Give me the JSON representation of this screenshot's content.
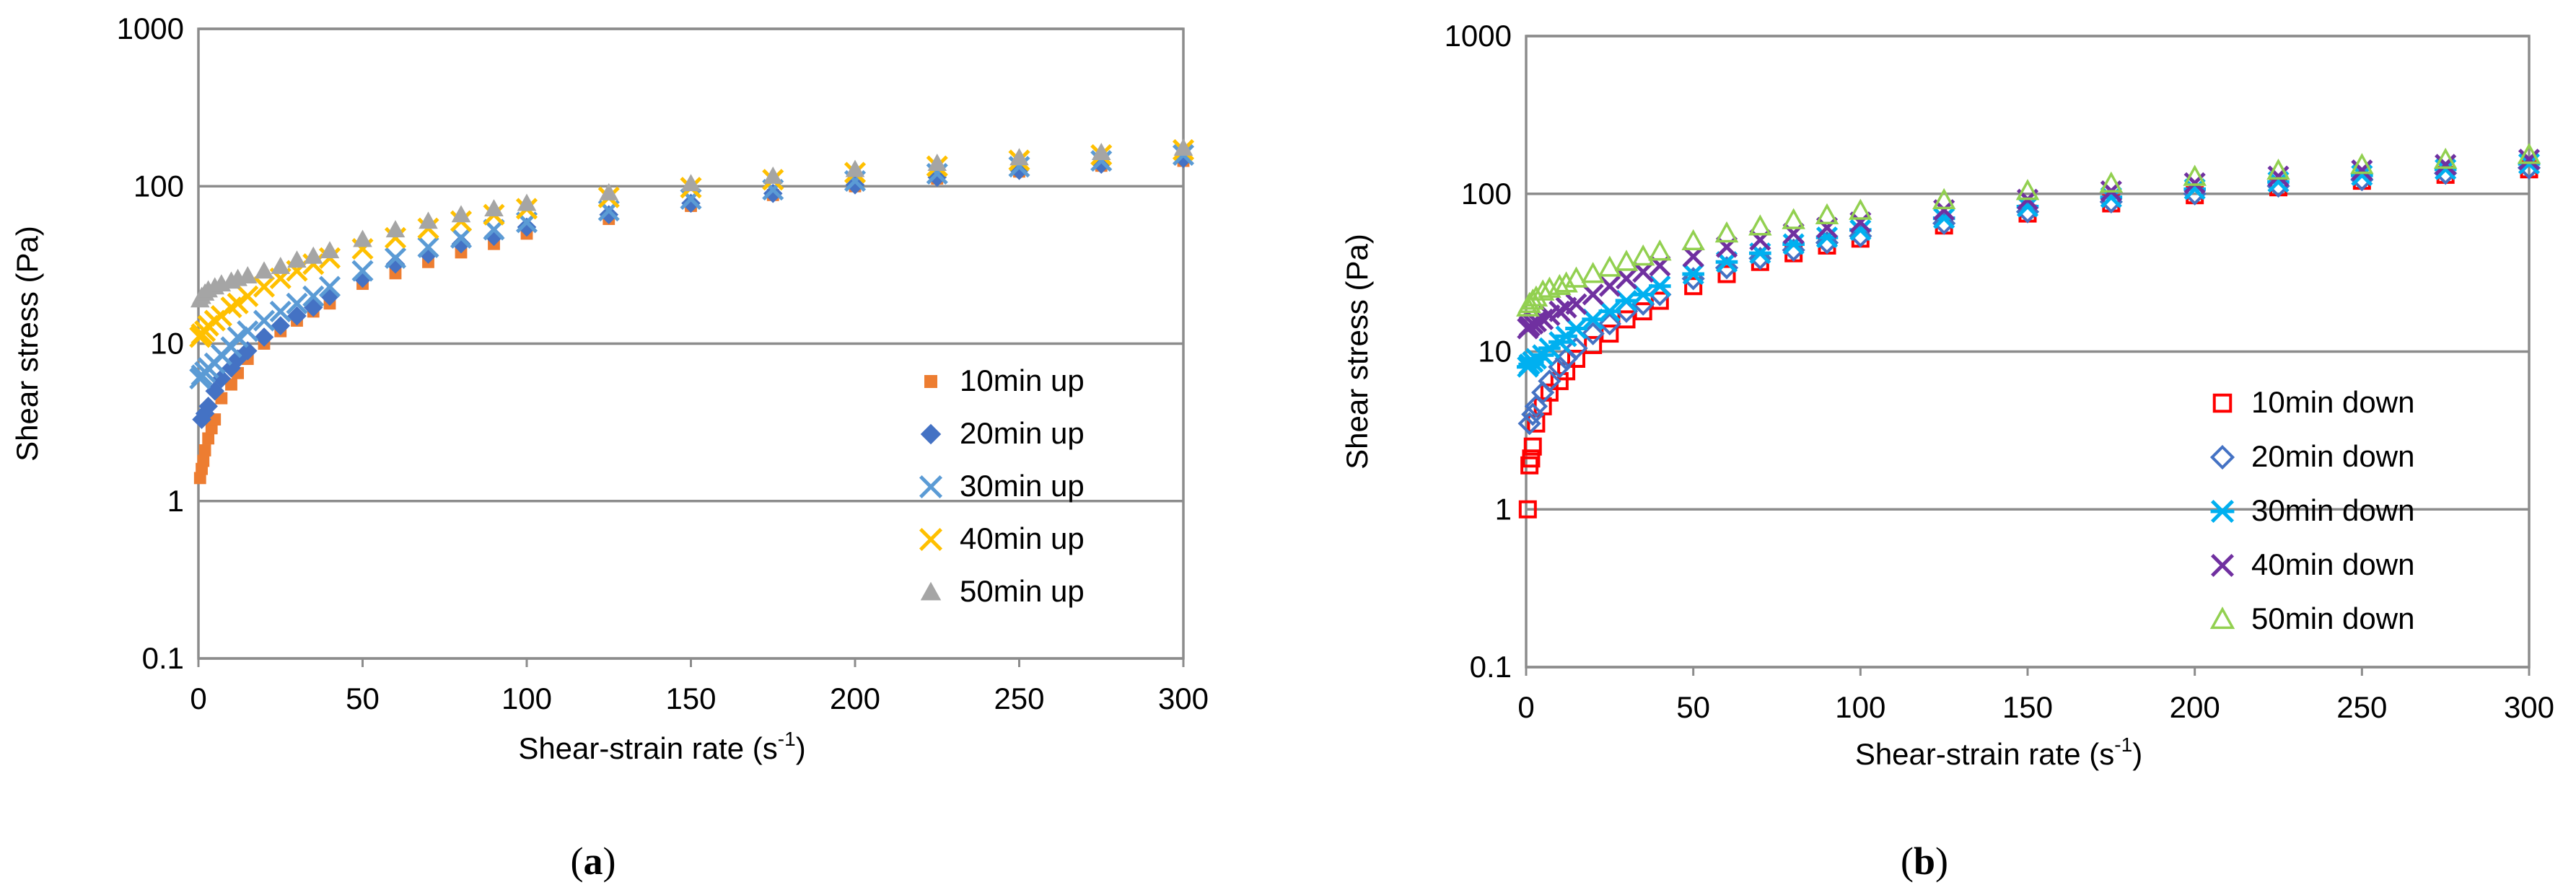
{
  "chart_data": [
    {
      "type": "scatter",
      "panel_label": "a",
      "xlabel": "Shear-strain rate (s",
      "xlabel_sup": "-1",
      "xlabel_close": ")",
      "ylabel": "Shear  stress (Pa)",
      "yscale": "log",
      "xlim": [
        0,
        300
      ],
      "ylim": [
        0.1,
        1000
      ],
      "xticks": [
        0,
        50,
        100,
        150,
        200,
        250,
        300
      ],
      "yticks": [
        0.1,
        1,
        10,
        100,
        1000
      ],
      "ytick_labels": [
        "0.1",
        "1",
        "10",
        "100",
        "1000"
      ],
      "grid": "horizontal",
      "legend_position": "bottom-right",
      "series": [
        {
          "name": "10min up",
          "marker": "square",
          "color": "#ED7D31",
          "x": [
            0.5,
            1,
            1.5,
            2,
            3,
            4,
            5,
            7,
            10,
            12,
            15,
            20,
            25,
            30,
            35,
            40,
            50,
            60,
            70,
            80,
            90,
            100,
            125,
            150,
            175,
            200,
            225,
            250,
            275,
            300
          ],
          "y": [
            1.4,
            1.6,
            1.8,
            2.1,
            2.5,
            2.9,
            3.3,
            4.5,
            5.5,
            6.5,
            8,
            10,
            12,
            14,
            16,
            18,
            24,
            28,
            33,
            38,
            43,
            50,
            62,
            75,
            88,
            100,
            112,
            124,
            135,
            145
          ]
        },
        {
          "name": "20min up",
          "marker": "diamond",
          "color": "#4472C4",
          "x": [
            1,
            2,
            3,
            5,
            7,
            10,
            12,
            15,
            20,
            25,
            30,
            35,
            40,
            50,
            60,
            70,
            80,
            90,
            100,
            125,
            150,
            175,
            200,
            225,
            250,
            275,
            300
          ],
          "y": [
            3.3,
            3.6,
            4,
            5,
            6,
            7,
            8,
            9,
            11,
            13,
            15,
            17,
            20,
            26,
            32,
            37,
            43,
            48,
            55,
            66,
            78,
            90,
            102,
            114,
            126,
            138,
            150
          ]
        },
        {
          "name": "30min up",
          "marker": "x",
          "color": "#5B9BD5",
          "x": [
            0.5,
            1,
            2,
            3,
            5,
            7,
            10,
            12,
            15,
            20,
            25,
            30,
            35,
            40,
            50,
            60,
            70,
            80,
            90,
            100,
            125,
            150,
            175,
            200,
            225,
            250,
            275,
            300
          ],
          "y": [
            6,
            6.3,
            6.6,
            7,
            7.5,
            8.5,
            9.5,
            11,
            12,
            14,
            16,
            18,
            20,
            23,
            29,
            35,
            41,
            47,
            53,
            59,
            70,
            83,
            95,
            108,
            120,
            133,
            145,
            158
          ]
        },
        {
          "name": "40min up",
          "marker": "x",
          "color": "#FFC000",
          "x": [
            0.5,
            1,
            2,
            3,
            5,
            7,
            10,
            12,
            15,
            20,
            25,
            30,
            35,
            40,
            50,
            60,
            70,
            80,
            90,
            100,
            125,
            150,
            175,
            200,
            225,
            250,
            275,
            300
          ],
          "y": [
            11,
            11.5,
            12,
            13,
            14,
            15,
            17,
            18,
            20,
            23,
            26,
            29,
            32,
            35,
            40,
            47,
            54,
            60,
            66,
            72,
            85,
            98,
            110,
            122,
            134,
            146,
            158,
            170
          ]
        },
        {
          "name": "50min up",
          "marker": "triangle",
          "color": "#A5A5A5",
          "x": [
            0.5,
            1,
            2,
            3,
            5,
            7,
            10,
            12,
            15,
            20,
            25,
            30,
            35,
            40,
            50,
            60,
            70,
            80,
            90,
            100,
            125,
            150,
            175,
            200,
            225,
            250,
            275,
            300
          ],
          "y": [
            19,
            20,
            21,
            22,
            23,
            24,
            25,
            26,
            27,
            29,
            31,
            34,
            36,
            39,
            46,
            53,
            60,
            66,
            72,
            78,
            91,
            104,
            116,
            128,
            140,
            152,
            164,
            175
          ]
        }
      ]
    },
    {
      "type": "scatter",
      "panel_label": "b",
      "xlabel": "Shear-strain rate (s",
      "xlabel_sup": "-1",
      "xlabel_close": ")",
      "ylabel": "Shear  stress (Pa)",
      "yscale": "log",
      "xlim": [
        0,
        300
      ],
      "ylim": [
        0.1,
        1000
      ],
      "xticks": [
        0,
        50,
        100,
        150,
        200,
        250,
        300
      ],
      "yticks": [
        0.1,
        1,
        10,
        100,
        1000
      ],
      "ytick_labels": [
        "0.1",
        "1",
        "10",
        "100",
        "1000"
      ],
      "grid": "horizontal",
      "legend_position": "bottom-right",
      "series": [
        {
          "name": "10min down",
          "marker": "square-open",
          "color": "#FF0000",
          "x": [
            0.5,
            1,
            1.5,
            2,
            3,
            5,
            7,
            10,
            12,
            15,
            20,
            25,
            30,
            35,
            40,
            50,
            60,
            70,
            80,
            90,
            100,
            125,
            150,
            175,
            200,
            225,
            250,
            275,
            300
          ],
          "y": [
            1,
            1.9,
            2.1,
            2.5,
            3.5,
            4.5,
            5.5,
            6.5,
            7.5,
            9,
            11,
            13,
            16,
            18,
            21,
            26,
            31,
            37,
            42,
            47,
            52,
            63,
            75,
            87,
            98,
            110,
            121,
            132,
            143
          ]
        },
        {
          "name": "20min down",
          "marker": "diamond-open",
          "color": "#4472C4",
          "x": [
            1,
            2,
            3,
            5,
            7,
            10,
            12,
            15,
            20,
            25,
            30,
            35,
            40,
            50,
            60,
            70,
            80,
            90,
            100,
            125,
            150,
            175,
            200,
            225,
            250,
            275,
            300
          ],
          "y": [
            3.5,
            4,
            4.5,
            5.5,
            6.5,
            8,
            9,
            10.5,
            13,
            15,
            18,
            20,
            23,
            29,
            34,
            39,
            44,
            49,
            54,
            65,
            77,
            89,
            100,
            112,
            123,
            135,
            146
          ]
        },
        {
          "name": "30min down",
          "marker": "asterisk",
          "color": "#00B0F0",
          "x": [
            0.5,
            1,
            2,
            3,
            5,
            7,
            10,
            12,
            15,
            20,
            25,
            30,
            35,
            40,
            50,
            60,
            70,
            80,
            90,
            100,
            125,
            150,
            175,
            200,
            225,
            250,
            275,
            300
          ],
          "y": [
            8,
            8.3,
            8.6,
            9,
            9.5,
            10.5,
            11.5,
            12.5,
            14,
            16,
            18,
            21,
            23,
            26,
            31,
            37,
            42,
            48,
            53,
            59,
            70,
            83,
            95,
            107,
            119,
            131,
            143,
            155
          ]
        },
        {
          "name": "40min down",
          "marker": "x",
          "color": "#7030A0",
          "x": [
            0.5,
            1,
            2,
            3,
            5,
            7,
            10,
            12,
            15,
            20,
            25,
            30,
            35,
            40,
            50,
            60,
            70,
            80,
            90,
            100,
            125,
            150,
            175,
            200,
            225,
            250,
            275,
            300
          ],
          "y": [
            14,
            14.5,
            15,
            15.5,
            16,
            17,
            18,
            19,
            20,
            23,
            26,
            29,
            32,
            35,
            40,
            46,
            51,
            56,
            61,
            66,
            79,
            92,
            104,
            117,
            129,
            141,
            153,
            165
          ]
        },
        {
          "name": "50min down",
          "marker": "triangle-open",
          "color": "#92D050",
          "x": [
            0.5,
            1,
            2,
            3,
            5,
            7,
            10,
            12,
            15,
            20,
            25,
            30,
            35,
            40,
            50,
            60,
            70,
            80,
            90,
            100,
            125,
            150,
            175,
            200,
            225,
            250,
            275,
            300
          ],
          "y": [
            19,
            20,
            21,
            22,
            24,
            25,
            26,
            27,
            29,
            31,
            34,
            37,
            40,
            43,
            50,
            56,
            62,
            68,
            73,
            78,
            91,
            104,
            116,
            128,
            140,
            152,
            164,
            176
          ]
        }
      ]
    }
  ]
}
